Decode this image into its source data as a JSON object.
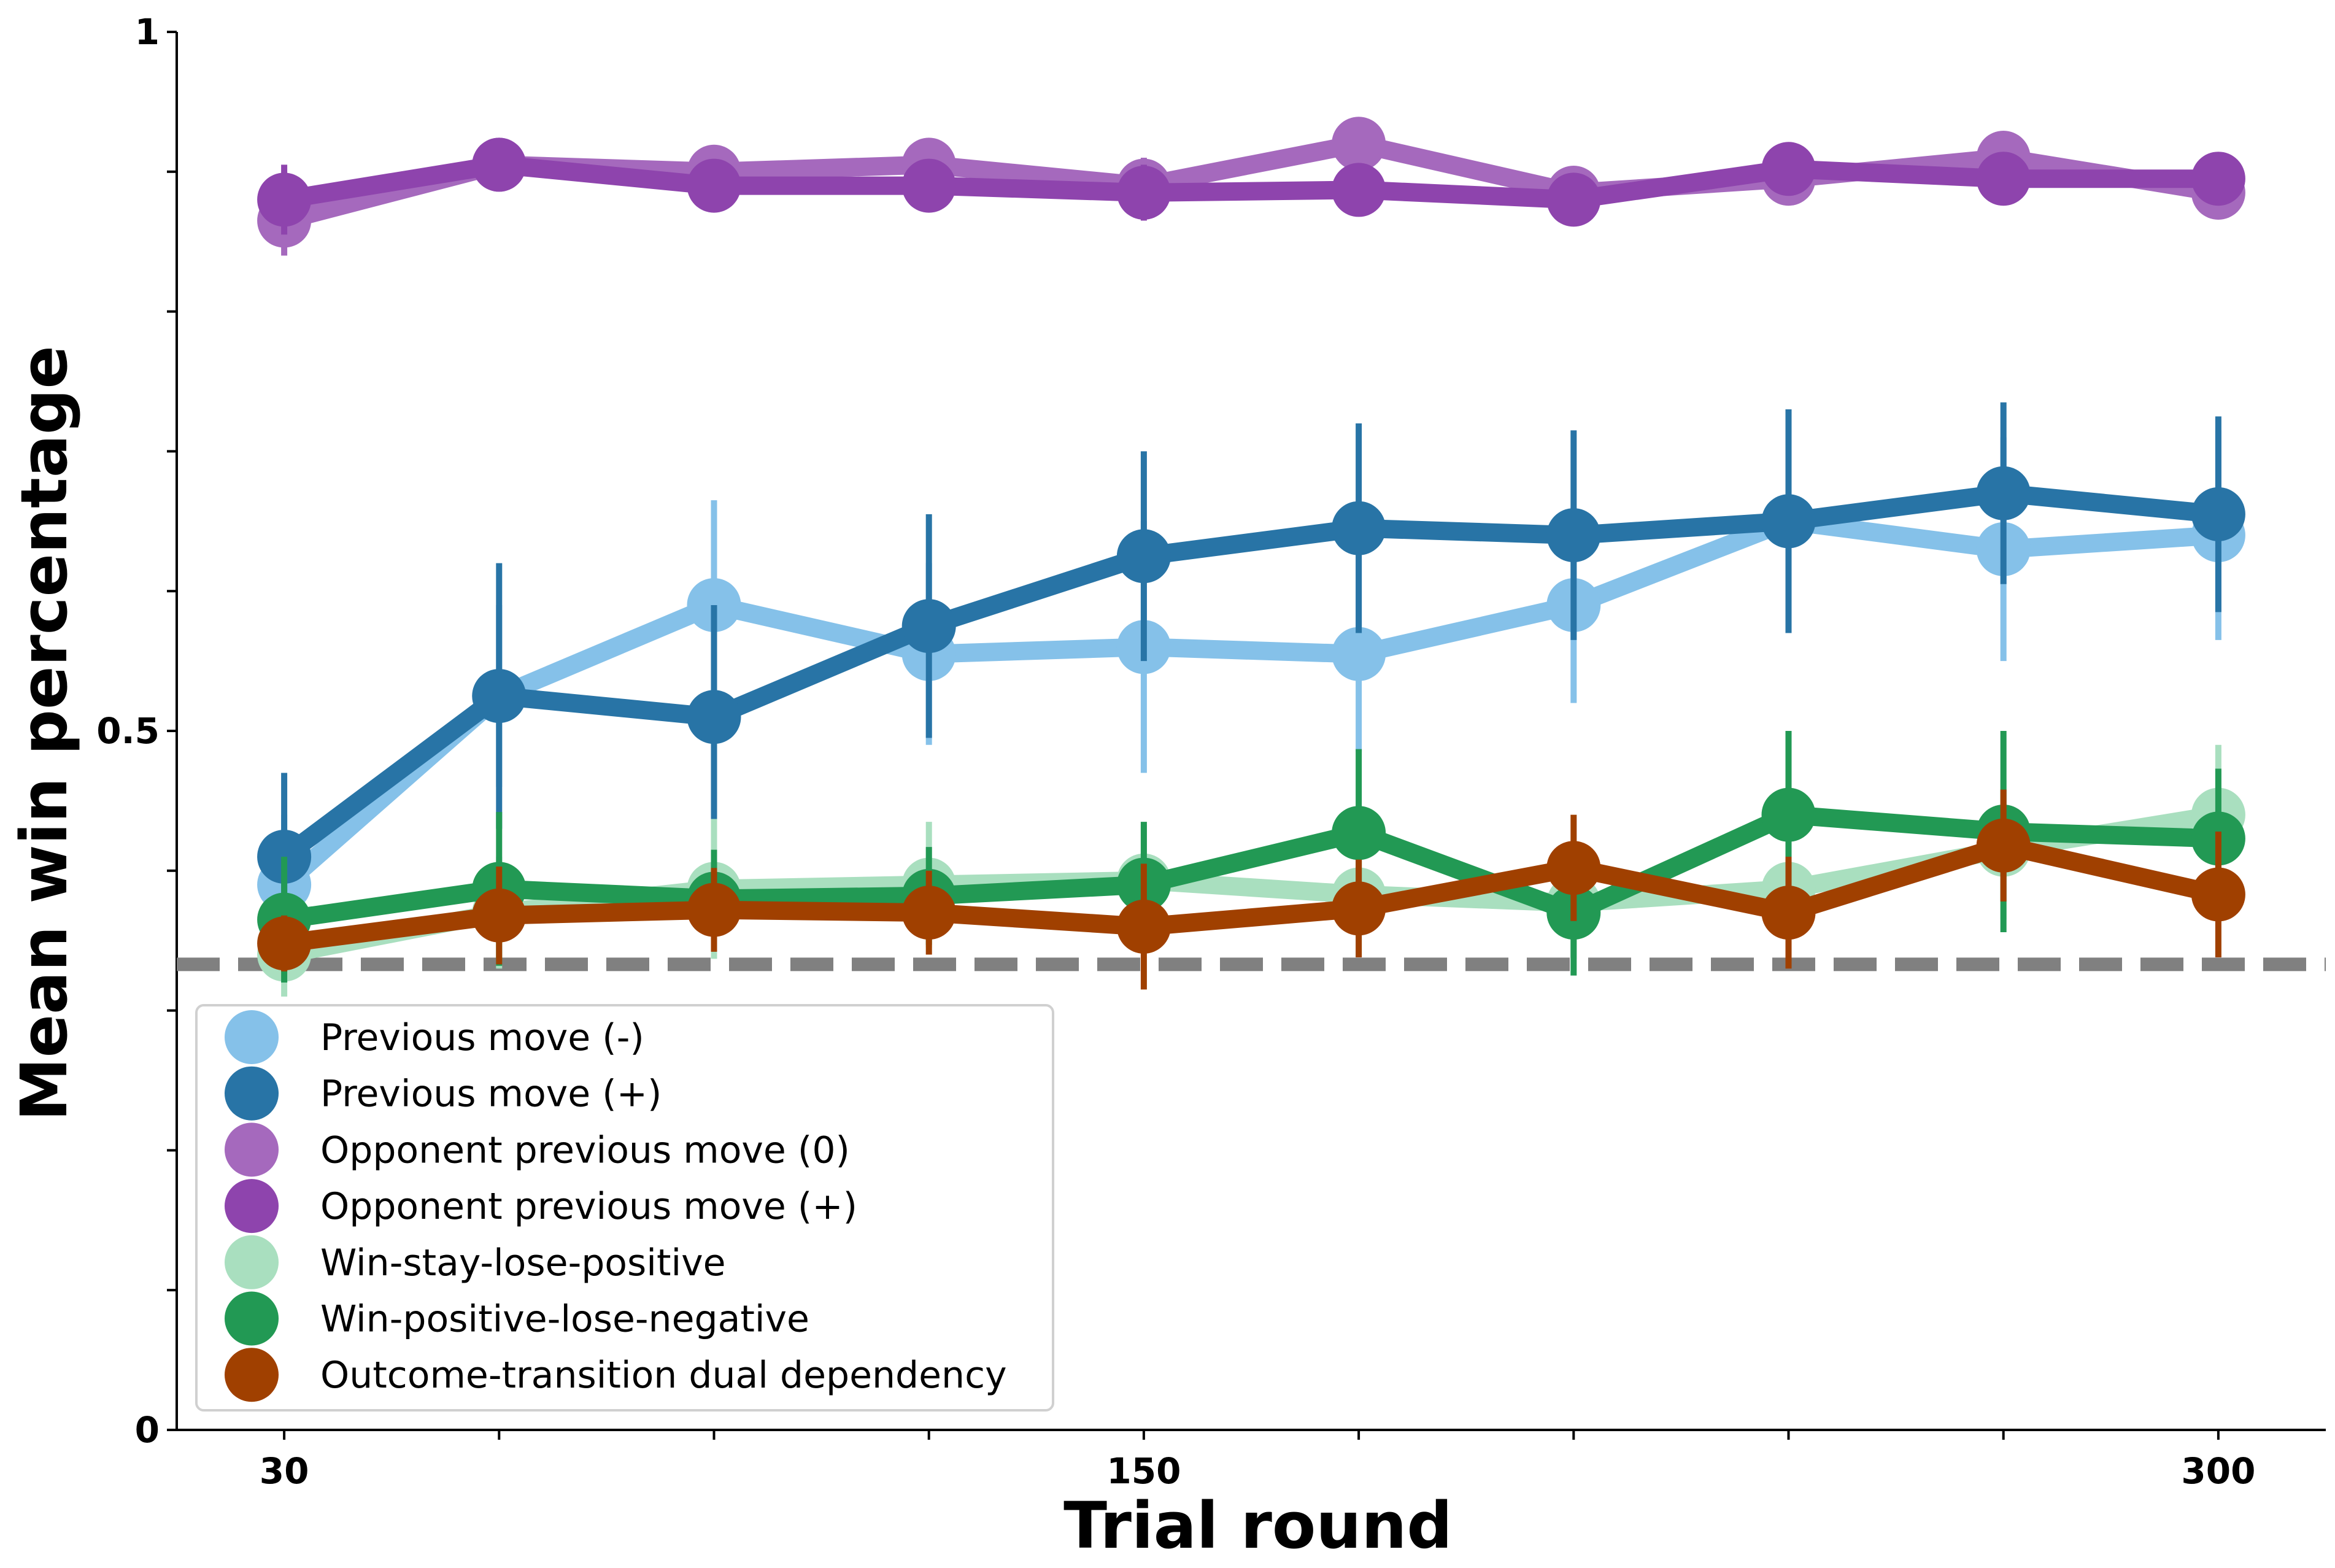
{
  "chart_data": {
    "type": "line",
    "title": "",
    "xlabel": "Trial round",
    "ylabel": "Mean win percentage",
    "xlim": [
      15,
      315
    ],
    "ylim": [
      0,
      1
    ],
    "x": [
      30,
      60,
      90,
      120,
      150,
      180,
      210,
      240,
      270,
      300
    ],
    "x_ticks": [
      30,
      60,
      90,
      120,
      150,
      180,
      210,
      240,
      270,
      300
    ],
    "x_tick_labels": [
      "30",
      "",
      "",
      "",
      "150",
      "",
      "",
      "",
      "",
      "300"
    ],
    "y_ticks": [
      0,
      0.1,
      0.2,
      0.3,
      0.4,
      0.5,
      0.6,
      0.7,
      0.8,
      0.9,
      1.0
    ],
    "y_tick_labels": [
      "0",
      "",
      "",
      "",
      "",
      "0.5",
      "",
      "",
      "",
      "",
      "1"
    ],
    "chance_level": 0.333,
    "grid": false,
    "legend_position": "lower-left",
    "series": [
      {
        "name": "Previous move (-)",
        "color": "#85C1E9",
        "values": [
          0.39,
          0.525,
          0.59,
          0.555,
          0.56,
          0.555,
          0.59,
          0.65,
          0.63,
          0.64
        ],
        "errors": [
          0.05,
          0.065,
          0.075,
          0.065,
          0.09,
          0.07,
          0.07,
          0.08,
          0.08,
          0.075
        ]
      },
      {
        "name": "Previous move (+)",
        "color": "#2874A6",
        "values": [
          0.41,
          0.525,
          0.51,
          0.575,
          0.625,
          0.645,
          0.64,
          0.65,
          0.67,
          0.655
        ],
        "errors": [
          0.06,
          0.095,
          0.08,
          0.08,
          0.075,
          0.075,
          0.075,
          0.08,
          0.065,
          0.07
        ]
      },
      {
        "name": "Opponent previous move (0)",
        "color": "#A569BD",
        "values": [
          0.865,
          0.905,
          0.9,
          0.905,
          0.89,
          0.92,
          0.885,
          0.895,
          0.91,
          0.885
        ],
        "errors": [
          0.025,
          0.01,
          0.015,
          0.015,
          0.02,
          0.015,
          0.015,
          0.015,
          0.015,
          0.015
        ]
      },
      {
        "name": "Opponent previous move (+)",
        "color": "#8E44AD",
        "values": [
          0.88,
          0.905,
          0.89,
          0.89,
          0.885,
          0.887,
          0.88,
          0.902,
          0.895,
          0.895
        ],
        "errors": [
          0.025,
          0.01,
          0.015,
          0.015,
          0.02,
          0.015,
          0.015,
          0.015,
          0.015,
          0.015
        ]
      },
      {
        "name": "Win-stay-lose-positive",
        "color": "#A9DFBF",
        "values": [
          0.34,
          0.37,
          0.387,
          0.39,
          0.393,
          0.383,
          0.377,
          0.387,
          0.415,
          0.44
        ],
        "errors": [
          0.03,
          0.04,
          0.05,
          0.045,
          0.04,
          0.045,
          0.04,
          0.045,
          0.05,
          0.05
        ]
      },
      {
        "name": "Win-positive-lose-negative",
        "color": "#229954",
        "values": [
          0.365,
          0.387,
          0.38,
          0.382,
          0.39,
          0.427,
          0.37,
          0.44,
          0.428,
          0.423
        ],
        "errors": [
          0.045,
          0.055,
          0.035,
          0.035,
          0.045,
          0.06,
          0.045,
          0.06,
          0.072,
          0.05
        ]
      },
      {
        "name": "Outcome-transition dual dependency",
        "color": "#A04000",
        "values": [
          0.348,
          0.368,
          0.372,
          0.37,
          0.36,
          0.373,
          0.402,
          0.37,
          0.418,
          0.383
        ],
        "errors": [
          0.02,
          0.035,
          0.03,
          0.03,
          0.045,
          0.035,
          0.038,
          0.04,
          0.04,
          0.045
        ]
      }
    ]
  }
}
